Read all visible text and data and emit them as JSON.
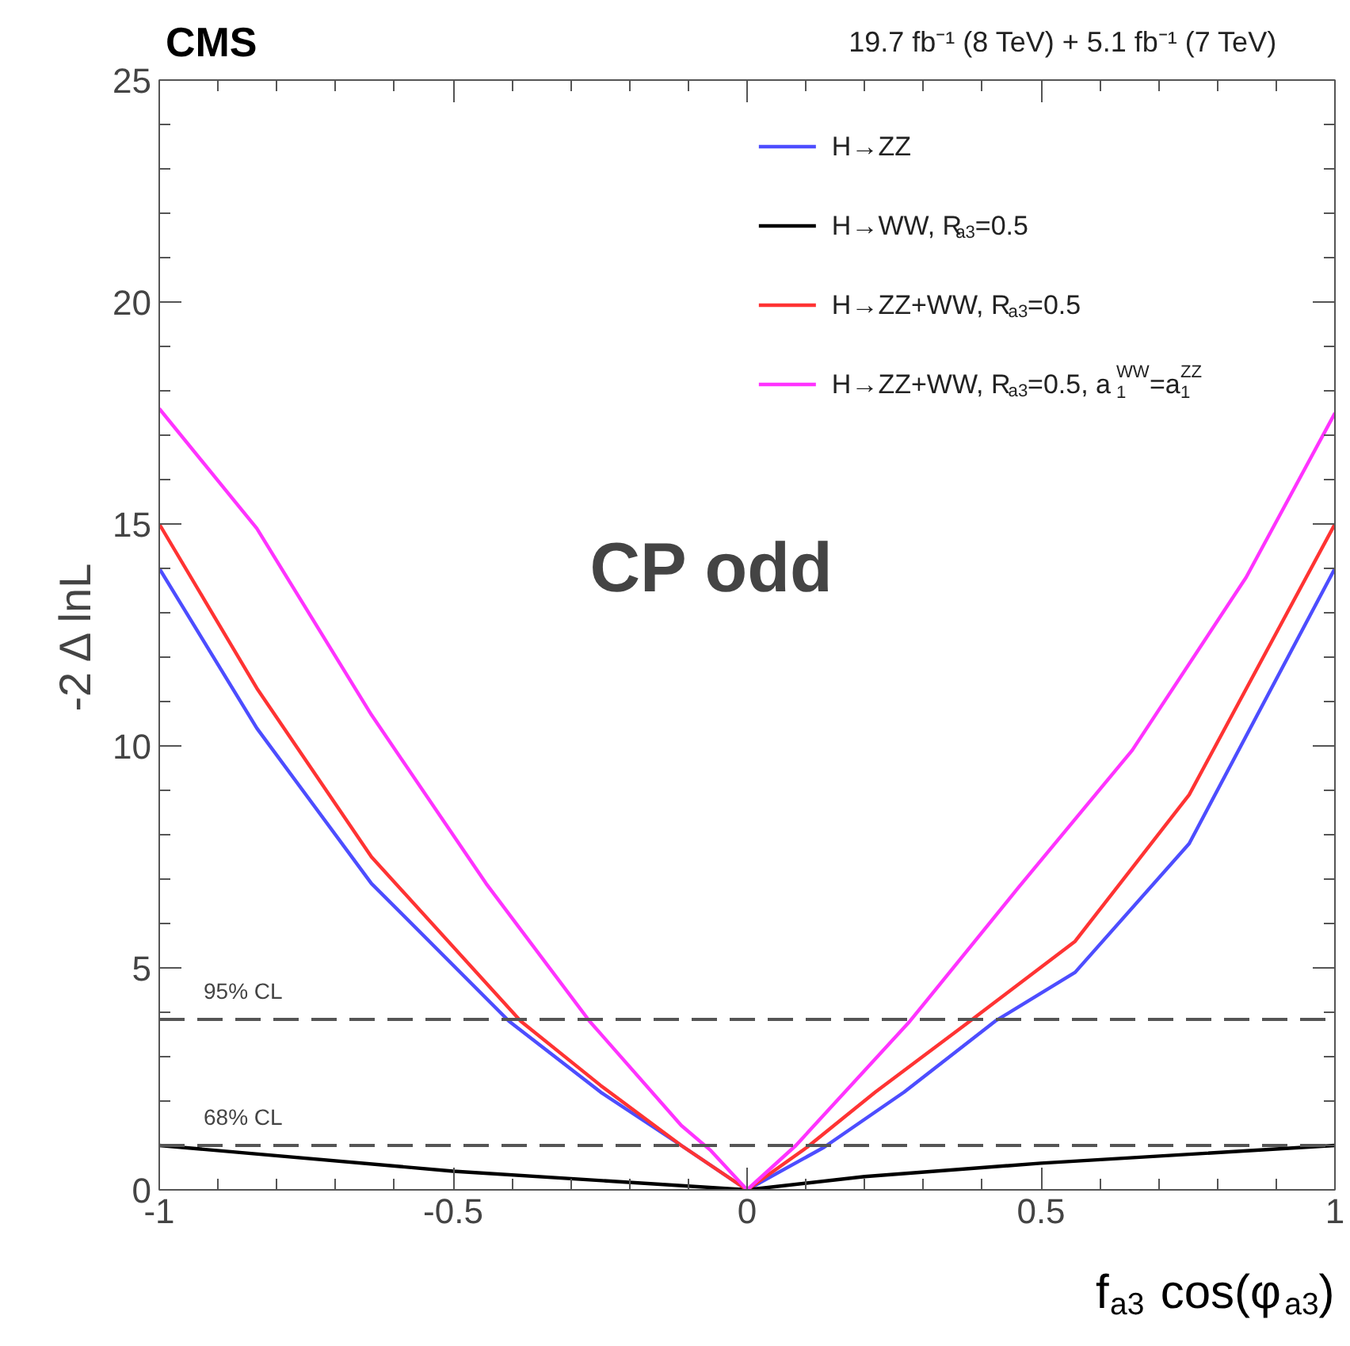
{
  "chart_data": {
    "type": "line",
    "title": "CMS",
    "subtitle": "19.7 fb⁻¹ (8 TeV) + 5.1 fb⁻¹ (7 TeV)",
    "xlabel": "f$_{a3}$ cos(φ$_{a3}$)",
    "ylabel": "-2 Δ lnL",
    "xlim": [
      -1,
      1
    ],
    "xticks": [
      -1,
      -0.5,
      0,
      0.5,
      1
    ],
    "ylim": [
      0,
      25
    ],
    "yticks": [
      0,
      5,
      10,
      15,
      20,
      25
    ],
    "grid": false,
    "legend": "top right",
    "annotations": [
      "CP odd"
    ],
    "ref_lines": [
      {
        "axis": "y",
        "value": 3.84,
        "label": "95% CL",
        "color": "#555555",
        "line_style": "dashed"
      },
      {
        "axis": "y",
        "value": 1,
        "label": "68% CL",
        "color": "#555555",
        "line_style": "dashed"
      }
    ],
    "series": [
      {
        "name": "H→ZZ",
        "color": "#4d4dff",
        "x": [
          -1,
          -0.834,
          -0.639,
          -0.405,
          -0.249,
          -0.112,
          0,
          0.131,
          0.267,
          0.422,
          0.558,
          0.752,
          1
        ],
        "values": [
          14,
          10.4,
          6.9,
          3.8,
          2.2,
          1.0,
          0,
          0.96,
          2.2,
          3.8,
          4.9,
          7.8,
          14
        ]
      },
      {
        "name": "H→WW, R$_{a3}$=0.5",
        "color": "#000000",
        "x": [
          -1,
          -0.5,
          0,
          0.2,
          0.5,
          1
        ],
        "values": [
          1.0,
          0.42,
          0,
          0.3,
          0.6,
          1.0
        ]
      },
      {
        "name": "H→ZZ+WW, R$_{a3}$=0.5",
        "color": "#ff3333",
        "x": [
          -1,
          -0.834,
          -0.639,
          -0.385,
          -0.249,
          -0.112,
          0,
          0.102,
          0.218,
          0.379,
          0.558,
          0.752,
          1
        ],
        "values": [
          15,
          11.3,
          7.5,
          3.8,
          2.35,
          1.0,
          0,
          0.96,
          2.2,
          3.8,
          5.6,
          8.9,
          15
        ]
      },
      {
        "name": "H→ZZ+WW, R$_{a3}$=0.5, a$_{1}$$^{WW}$=a$_{1}$$^{ZZ}$",
        "color": "#ff33ff",
        "x": [
          -1,
          -0.834,
          -0.639,
          -0.444,
          -0.268,
          -0.112,
          -0.063,
          0,
          0.083,
          0.277,
          0.461,
          0.655,
          0.849,
          1
        ],
        "values": [
          17.6,
          14.9,
          10.7,
          6.9,
          3.8,
          1.45,
          0.9,
          0,
          1.0,
          3.8,
          6.8,
          9.9,
          13.8,
          17.5
        ]
      }
    ]
  }
}
